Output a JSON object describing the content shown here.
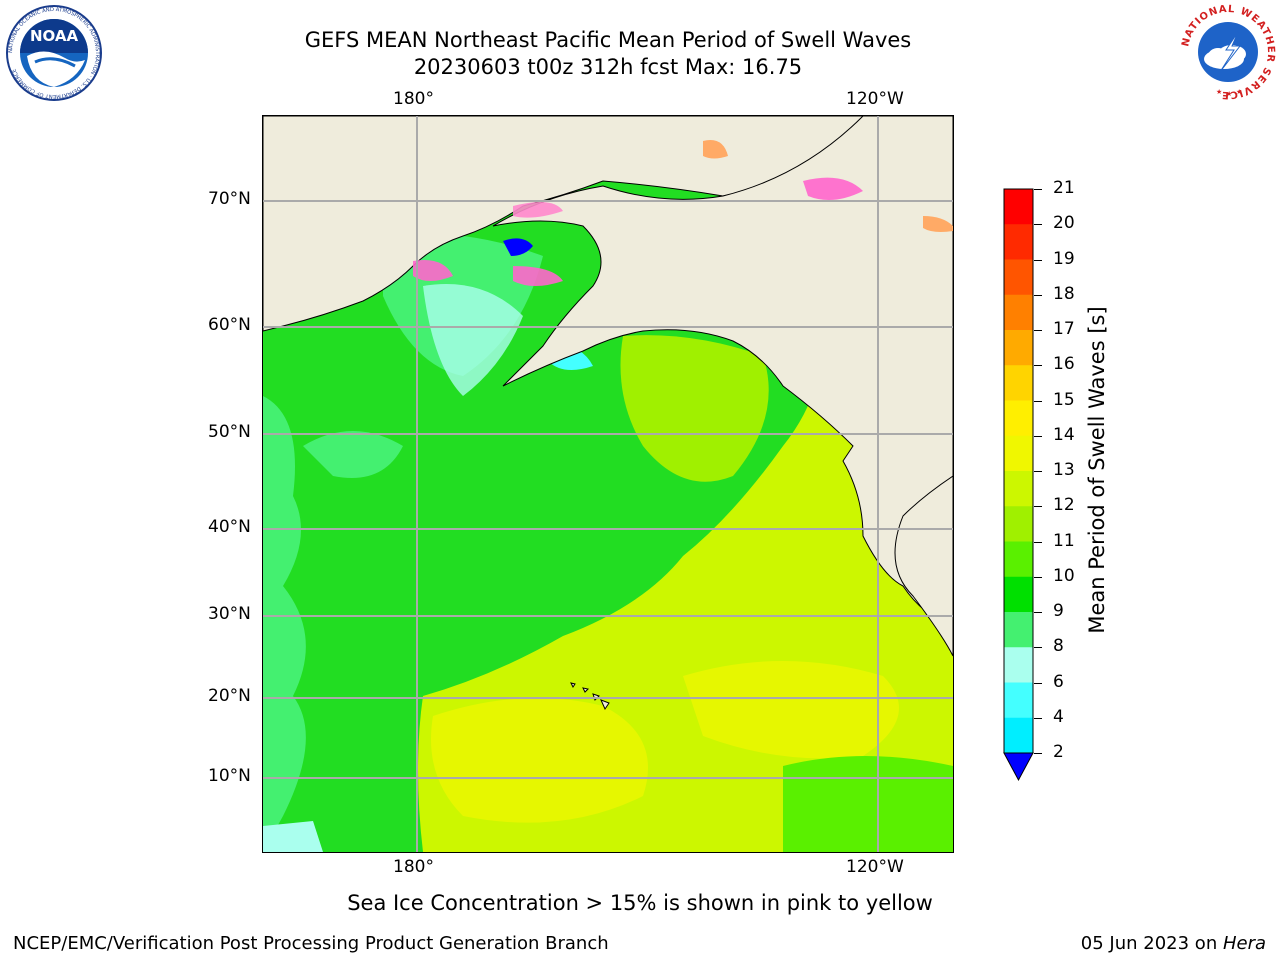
{
  "header": {
    "title_line1": "GEFS MEAN Northeast Pacific Mean Period of Swell Waves",
    "title_line2": "20230603 t00z 312h fcst   Max: 16.75"
  },
  "logos": {
    "noaa_text": "NOAA",
    "noaa_ring_text": "NATIONAL OCEANIC AND ATMOSPHERIC ADMINISTRATION · U.S. DEPARTMENT OF COMMERCE",
    "nws_ring_text": "NATIONAL WEATHER SERVICE"
  },
  "map": {
    "lon_labels": {
      "left": "180°",
      "right": "120°W"
    },
    "lat_labels": [
      "70°N",
      "60°N",
      "50°N",
      "40°N",
      "30°N",
      "20°N",
      "10°N"
    ],
    "colors": {
      "land": "#efecdc",
      "ocean_green": "#22dd22",
      "ocean_lightgreen": "#44f070",
      "ocean_yellow": "#ccf700",
      "ocean_yellow2": "#e6f700",
      "ice_pink": "#ff66cc",
      "grid": "#aaaaaa"
    }
  },
  "colorbar": {
    "label": "Mean Period of Swell Waves [s]",
    "ticks": [
      "21",
      "20",
      "19",
      "18",
      "17",
      "16",
      "15",
      "14",
      "13",
      "12",
      "11",
      "10",
      "9",
      "8",
      "6",
      "4",
      "2"
    ],
    "colors": [
      "#ff0000",
      "#ff2a00",
      "#ff5500",
      "#ff8000",
      "#ffaa00",
      "#ffd400",
      "#ffef00",
      "#f0f700",
      "#ccf700",
      "#a0f000",
      "#5af000",
      "#00e000",
      "#44f070",
      "#aaffee",
      "#44ffff",
      "#00eeff",
      "#0099ff",
      "#0044ff"
    ],
    "extend_color": "#0000ff"
  },
  "caption": "Sea Ice Concentration > 15% is shown in pink to yellow",
  "footer": {
    "left": "NCEP/EMC/Verification Post Processing Product Generation Branch",
    "right_prefix": "05 Jun 2023 on ",
    "right_host": "Hera"
  }
}
